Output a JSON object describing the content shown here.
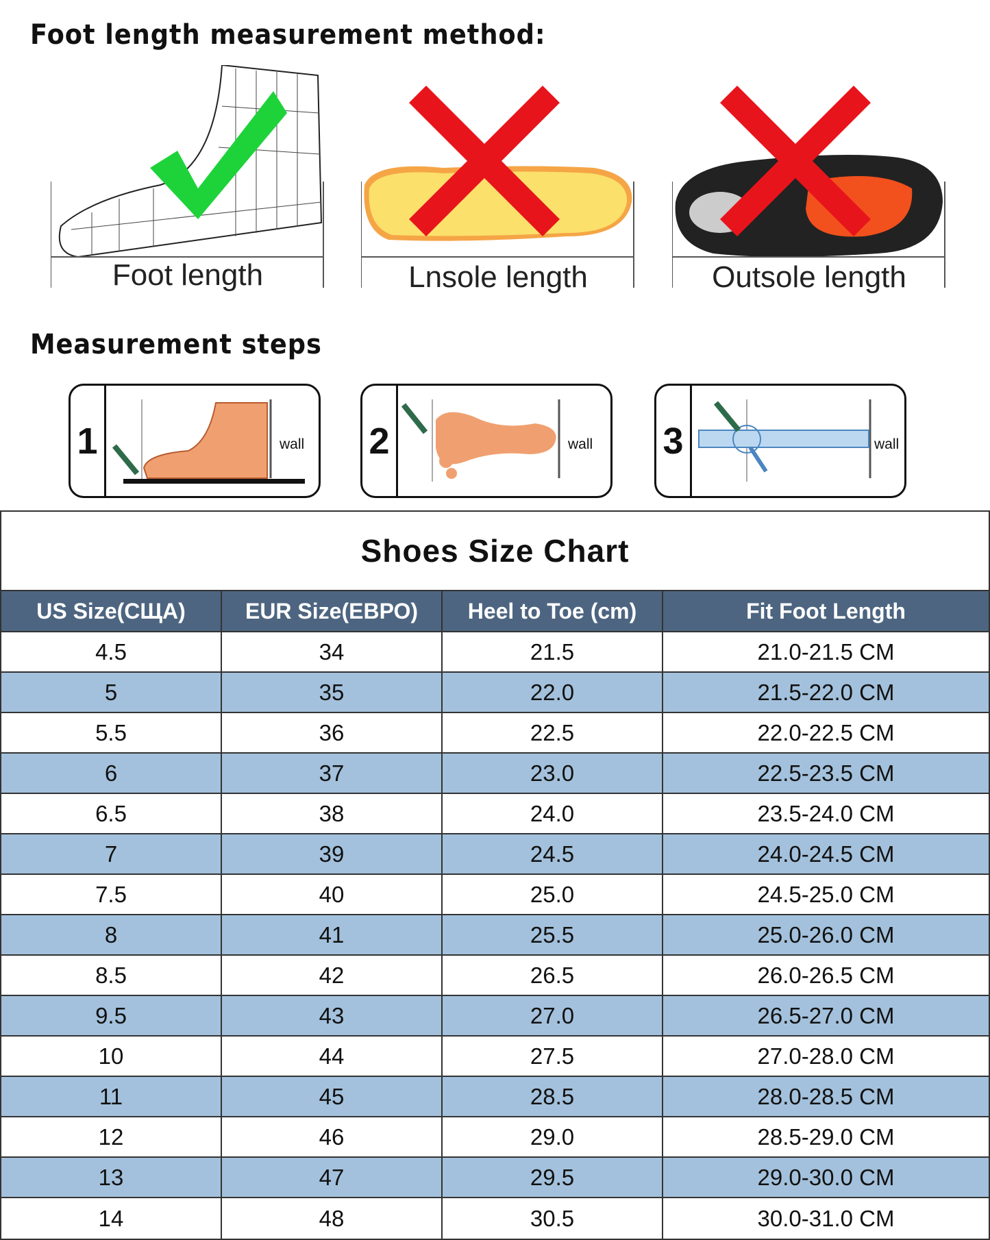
{
  "method": {
    "title": "Foot length measurement method:",
    "items": [
      {
        "label": "Foot length",
        "mark": "check"
      },
      {
        "label": "Lnsole length",
        "mark": "cross"
      },
      {
        "label": "Outsole length",
        "mark": "cross"
      }
    ]
  },
  "steps": {
    "title": "Measurement steps",
    "items": [
      {
        "num": "1",
        "wall": "wall"
      },
      {
        "num": "2",
        "wall": "wall"
      },
      {
        "num": "3",
        "wall": "wall"
      }
    ]
  },
  "chart": {
    "title": "Shoes Size Chart",
    "headers": [
      "US Size(СЩА)",
      "EUR Size(ЕВРО)",
      "Heel to Toe (cm)",
      "Fit Foot Length"
    ],
    "rows": [
      [
        "4.5",
        "34",
        "21.5",
        "21.0-21.5 CM"
      ],
      [
        "5",
        "35",
        "22.0",
        "21.5-22.0 CM"
      ],
      [
        "5.5",
        "36",
        "22.5",
        "22.0-22.5 CM"
      ],
      [
        "6",
        "37",
        "23.0",
        "22.5-23.5 CM"
      ],
      [
        "6.5",
        "38",
        "24.0",
        "23.5-24.0 CM"
      ],
      [
        "7",
        "39",
        "24.5",
        "24.0-24.5 CM"
      ],
      [
        "7.5",
        "40",
        "25.0",
        "24.5-25.0 CM"
      ],
      [
        "8",
        "41",
        "25.5",
        "25.0-26.0 CM"
      ],
      [
        "8.5",
        "42",
        "26.5",
        "26.0-26.5 CM"
      ],
      [
        "9.5",
        "43",
        "27.0",
        "26.5-27.0 CM"
      ],
      [
        "10",
        "44",
        "27.5",
        "27.0-28.0 CM"
      ],
      [
        "11",
        "45",
        "28.5",
        "28.0-28.5 CM"
      ],
      [
        "12",
        "46",
        "29.0",
        "28.5-29.0 CM"
      ],
      [
        "13",
        "47",
        "29.5",
        "29.0-30.0 CM"
      ],
      [
        "14",
        "48",
        "30.5",
        "30.0-31.0 CM"
      ]
    ],
    "colors": {
      "header": "#4d6580",
      "alt_row": "#a3c1dc"
    }
  }
}
